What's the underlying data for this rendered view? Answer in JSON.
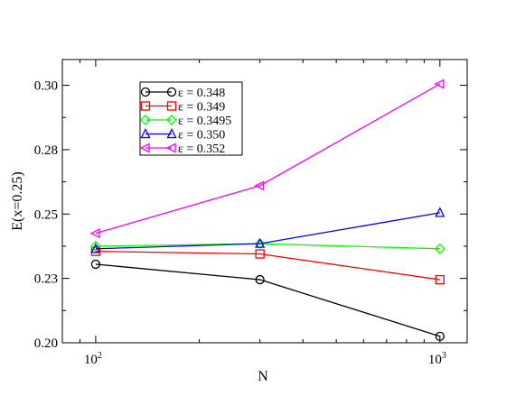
{
  "chart_data": {
    "type": "line",
    "title": "",
    "xlabel": "N",
    "ylabel": "E(x=0.25)",
    "xscale": "log",
    "xlim": [
      80,
      1200
    ],
    "ylim": [
      0.2,
      0.31
    ],
    "x_ticks": [
      {
        "value": 100,
        "base": "10",
        "exp": "2"
      },
      {
        "value": 1000,
        "base": "10",
        "exp": "3"
      }
    ],
    "y_ticks": [
      {
        "value": 0.2,
        "label": "0.20"
      },
      {
        "value": 0.225,
        "label": "0.23"
      },
      {
        "value": 0.25,
        "label": "0.25"
      },
      {
        "value": 0.275,
        "label": "0.28"
      },
      {
        "value": 0.3,
        "label": "0.30"
      }
    ],
    "grid": false,
    "legend_position": "top-left",
    "x": [
      100,
      300,
      1000
    ],
    "series": [
      {
        "name": "ε = 0.348",
        "color": "#000000",
        "marker": "circle",
        "values": [
          0.2305,
          0.2245,
          0.2025
        ]
      },
      {
        "name": "ε = 0.349",
        "color": "#ff0000",
        "marker": "square",
        "values": [
          0.2355,
          0.2345,
          0.2245
        ]
      },
      {
        "name": "ε = 0.3495",
        "color": "#00ff00",
        "marker": "diamond",
        "values": [
          0.2375,
          0.2385,
          0.2365
        ]
      },
      {
        "name": "ε = 0.350",
        "color": "#0000ff",
        "marker": "triangle-up",
        "values": [
          0.2365,
          0.2385,
          0.2505
        ]
      },
      {
        "name": "ε = 0.352",
        "color": "#ff00ff",
        "marker": "triangle-left",
        "values": [
          0.2425,
          0.261,
          0.3005
        ]
      }
    ]
  }
}
